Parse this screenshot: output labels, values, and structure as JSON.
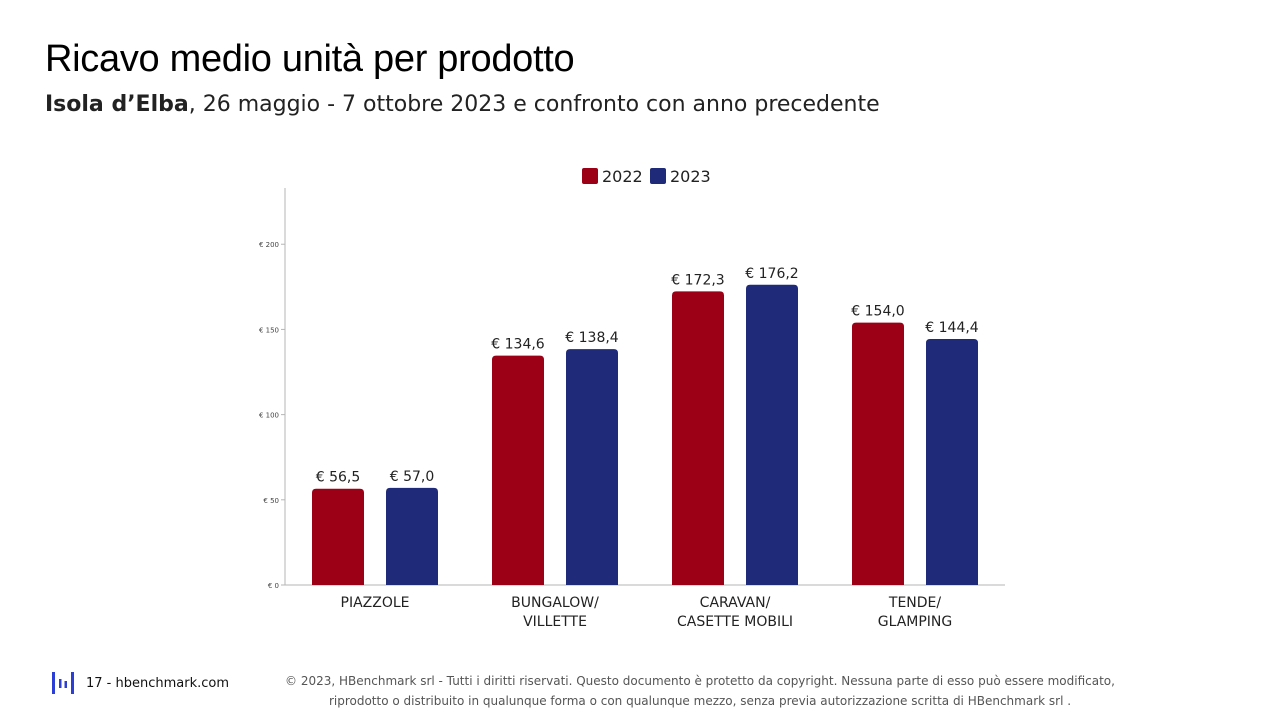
{
  "header": {
    "title": "Ricavo medio unità per prodotto",
    "subtitle_bold": "Isola d’Elba",
    "subtitle_rest": ", 26 maggio - 7 ottobre 2023 e confronto con anno precedente"
  },
  "chart_data": {
    "type": "bar",
    "categories": [
      [
        "PIAZZOLE"
      ],
      [
        "BUNGALOW/",
        "VILLETTE"
      ],
      [
        "CARAVAN/",
        "CASETTE MOBILI"
      ],
      [
        "TENDE/",
        "GLAMPING"
      ]
    ],
    "series": [
      {
        "name": "2022",
        "color": "#9B0016",
        "values": [
          56.5,
          134.6,
          172.3,
          154.0
        ],
        "labels": [
          "€ 56,5",
          "€ 134,6",
          "€ 172,3",
          "€ 154,0"
        ]
      },
      {
        "name": "2023",
        "color": "#1F2A78",
        "values": [
          57.0,
          138.4,
          176.2,
          144.4
        ],
        "labels": [
          "€ 57,0",
          "€ 138,4",
          "€ 176,2",
          "€ 144,4"
        ]
      }
    ],
    "yticks": [
      0,
      50,
      100,
      150,
      200
    ],
    "ytick_labels": [
      "€ 0",
      "€ 50",
      "€ 100",
      "€ 150",
      "€ 200"
    ],
    "ylim": [
      0,
      233
    ],
    "legend": "top-center",
    "grid": false
  },
  "footer": {
    "page": "17 - hbenchmark.com",
    "copyright_line1": "© 2023, HBenchmark srl - Tutti i diritti riservati. Questo documento è protetto da copyright. Nessuna parte di esso può essere modificato,",
    "copyright_line2": "riprodotto o distribuito in qualunque forma o con qualunque mezzo, senza previa autorizzazione scritta di HBenchmark srl ."
  }
}
